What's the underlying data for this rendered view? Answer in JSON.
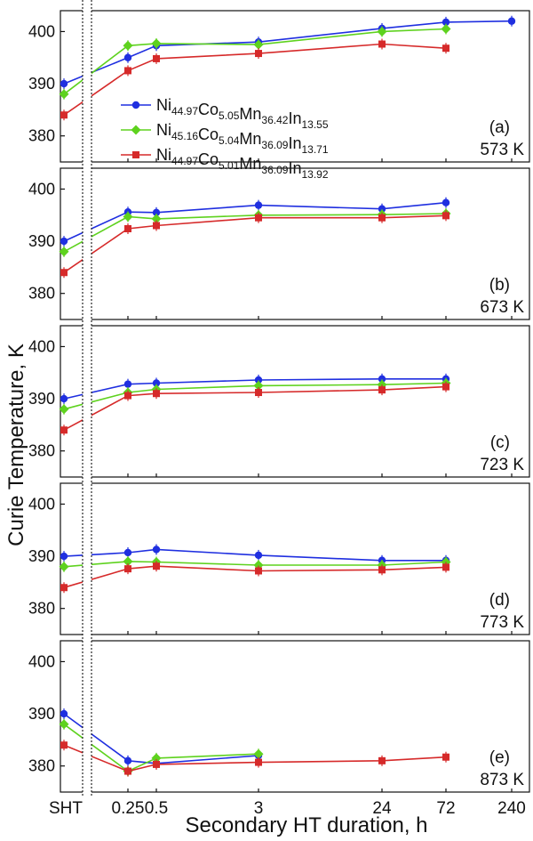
{
  "figure": {
    "ylabel": "Curie Temperature, K",
    "xlabel": "Secondary HT duration, h",
    "x_tick_labels": [
      "SHT",
      "0.25",
      "0.5",
      "3",
      "24",
      "72",
      "240"
    ],
    "y_tick_labels": [
      "380",
      "390",
      "400"
    ],
    "colors": {
      "blue": "#1f2fe0",
      "green": "#5ed21e",
      "red": "#d62a2a"
    }
  },
  "legend": [
    {
      "base": [
        "Ni",
        "Co",
        "Mn",
        "In"
      ],
      "subs": [
        "44.97",
        "5.05",
        "36.42",
        "13.55"
      ],
      "color": "#1f2fe0",
      "marker": "circle"
    },
    {
      "base": [
        "Ni",
        "Co",
        "Mn",
        "In"
      ],
      "subs": [
        "45.16",
        "5.04",
        "36.09",
        "13.71"
      ],
      "color": "#5ed21e",
      "marker": "diamond"
    },
    {
      "base": [
        "Ni",
        "Co",
        "Mn",
        "In"
      ],
      "subs": [
        "44.97",
        "5.01",
        "36.09",
        "13.92"
      ],
      "color": "#d62a2a",
      "marker": "square"
    }
  ],
  "chart_data": [
    {
      "type": "line",
      "panel": "(a)",
      "temp": "573 K",
      "ylim": [
        375,
        404
      ],
      "x": [
        "SHT",
        "0.25",
        "0.5",
        "3",
        "24",
        "72",
        "240"
      ],
      "series": [
        {
          "name": "Ni44.97Co5.05Mn36.42In13.55",
          "color": "#1f2fe0",
          "marker": "circle",
          "values": [
            390.0,
            395.0,
            397.3,
            398.0,
            400.6,
            401.8,
            402.0
          ]
        },
        {
          "name": "Ni45.16Co5.04Mn36.09In13.71",
          "color": "#5ed21e",
          "marker": "diamond",
          "values": [
            388.0,
            397.3,
            397.7,
            397.5,
            400.0,
            400.5,
            null
          ]
        },
        {
          "name": "Ni44.97Co5.01Mn36.09In13.92",
          "color": "#d62a2a",
          "marker": "square",
          "values": [
            384.0,
            392.5,
            394.8,
            395.8,
            397.6,
            396.8,
            null
          ]
        }
      ]
    },
    {
      "type": "line",
      "panel": "(b)",
      "temp": "673 K",
      "ylim": [
        375,
        404
      ],
      "x": [
        "SHT",
        "0.25",
        "0.5",
        "3",
        "24",
        "72",
        "240"
      ],
      "series": [
        {
          "name": "Ni44.97Co5.05Mn36.42In13.55",
          "color": "#1f2fe0",
          "marker": "circle",
          "values": [
            390.0,
            395.6,
            395.5,
            396.9,
            396.2,
            397.4,
            null
          ]
        },
        {
          "name": "Ni45.16Co5.04Mn36.09In13.71",
          "color": "#5ed21e",
          "marker": "diamond",
          "values": [
            388.0,
            394.7,
            394.3,
            395.0,
            395.1,
            395.3,
            null
          ]
        },
        {
          "name": "Ni44.97Co5.01Mn36.09In13.92",
          "color": "#d62a2a",
          "marker": "square",
          "values": [
            384.0,
            392.4,
            393.0,
            394.5,
            394.5,
            394.9,
            null
          ]
        }
      ]
    },
    {
      "type": "line",
      "panel": "(c)",
      "temp": "723 K",
      "ylim": [
        375,
        404
      ],
      "x": [
        "SHT",
        "0.25",
        "0.5",
        "3",
        "24",
        "72",
        "240"
      ],
      "series": [
        {
          "name": "Ni44.97Co5.05Mn36.42In13.55",
          "color": "#1f2fe0",
          "marker": "circle",
          "values": [
            390.0,
            392.8,
            393.0,
            393.6,
            393.8,
            393.8,
            null
          ]
        },
        {
          "name": "Ni45.16Co5.04Mn36.09In13.71",
          "color": "#5ed21e",
          "marker": "diamond",
          "values": [
            388.0,
            391.2,
            391.8,
            392.5,
            392.7,
            393.0,
            null
          ]
        },
        {
          "name": "Ni44.97Co5.01Mn36.09In13.92",
          "color": "#d62a2a",
          "marker": "square",
          "values": [
            384.0,
            390.6,
            391.0,
            391.2,
            391.7,
            392.3,
            null
          ]
        }
      ]
    },
    {
      "type": "line",
      "panel": "(d)",
      "temp": "773 K",
      "ylim": [
        375,
        404
      ],
      "x": [
        "SHT",
        "0.25",
        "0.5",
        "3",
        "24",
        "72",
        "240"
      ],
      "series": [
        {
          "name": "Ni44.97Co5.05Mn36.42In13.55",
          "color": "#1f2fe0",
          "marker": "circle",
          "values": [
            390.0,
            390.7,
            391.3,
            390.2,
            389.2,
            389.2,
            null
          ]
        },
        {
          "name": "Ni45.16Co5.04Mn36.09In13.71",
          "color": "#5ed21e",
          "marker": "diamond",
          "values": [
            388.0,
            389.0,
            388.9,
            388.3,
            388.3,
            388.9,
            null
          ]
        },
        {
          "name": "Ni44.97Co5.01Mn36.09In13.92",
          "color": "#d62a2a",
          "marker": "square",
          "values": [
            384.0,
            387.6,
            388.1,
            387.2,
            387.4,
            387.9,
            null
          ]
        }
      ]
    },
    {
      "type": "line",
      "panel": "(e)",
      "temp": "873 K",
      "ylim": [
        375,
        404
      ],
      "x": [
        "SHT",
        "0.25",
        "0.5",
        "3",
        "24",
        "72",
        "240"
      ],
      "series": [
        {
          "name": "Ni44.97Co5.05Mn36.42In13.55",
          "color": "#1f2fe0",
          "marker": "circle",
          "values": [
            390.0,
            381.0,
            380.5,
            382.0,
            null,
            null,
            null
          ]
        },
        {
          "name": "Ni45.16Co5.04Mn36.09In13.71",
          "color": "#5ed21e",
          "marker": "diamond",
          "values": [
            388.0,
            379.0,
            381.5,
            382.3,
            null,
            null,
            null
          ]
        },
        {
          "name": "Ni44.97Co5.01Mn36.09In13.92",
          "color": "#d62a2a",
          "marker": "square",
          "values": [
            384.0,
            379.0,
            380.3,
            380.7,
            381.0,
            381.7,
            null
          ]
        }
      ]
    }
  ]
}
